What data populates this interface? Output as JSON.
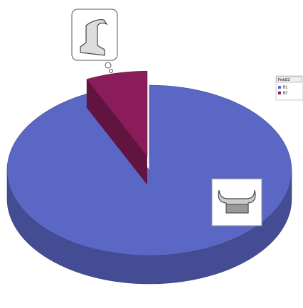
{
  "chart_data": {
    "type": "pie",
    "legend_title": "Field23",
    "categories": [
      "B1",
      "B2"
    ],
    "values": [
      93,
      7
    ],
    "colors": [
      "#5b67c4",
      "#8a1c5c"
    ],
    "legend": "right"
  }
}
